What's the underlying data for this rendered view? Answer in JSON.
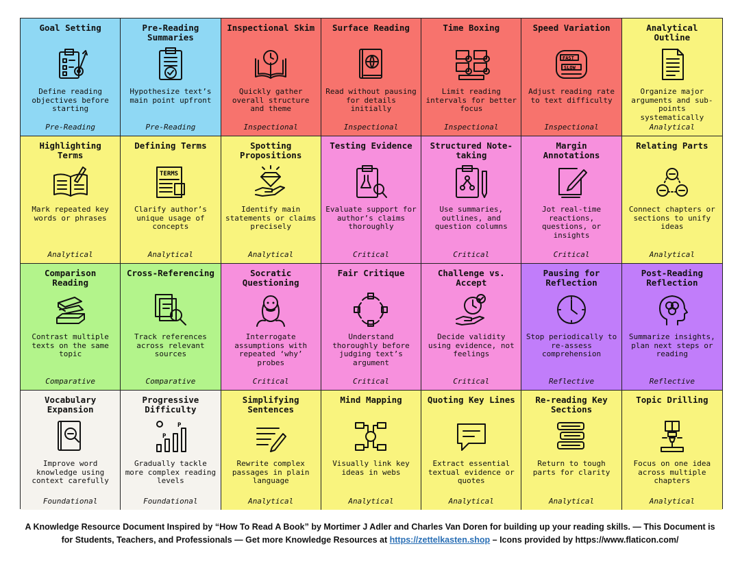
{
  "colors": {
    "pre_reading": "#8fd8f4",
    "inspectional": "#f7736d",
    "analytical": "#f9f47e",
    "critical": "#f790dd",
    "comparative": "#b3f48b",
    "reflective": "#c17dfa",
    "foundational": "#f5f3ee"
  },
  "cards": [
    {
      "title": "Goal Setting",
      "desc": "Define reading objectives before starting",
      "cat": "Pre-Reading",
      "icon": "clipboard-target-icon",
      "color": "pre_reading"
    },
    {
      "title": "Pre-Reading Summaries",
      "desc": "Hypothesize text’s main point upfront",
      "cat": "Pre-Reading",
      "icon": "clipboard-check-icon",
      "color": "pre_reading"
    },
    {
      "title": "Inspectional Skim",
      "desc": "Quickly gather overall structure and theme",
      "cat": "Inspectional",
      "icon": "book-clock-icon",
      "color": "inspectional"
    },
    {
      "title": "Surface Reading",
      "desc": "Read without pausing for details initially",
      "cat": "Inspectional",
      "icon": "book-globe-icon",
      "color": "inspectional"
    },
    {
      "title": "Time Boxing",
      "desc": "Limit reading intervals for better focus",
      "cat": "Inspectional",
      "icon": "time-blocks-icon",
      "color": "inspectional"
    },
    {
      "title": "Speed Variation",
      "desc": "Adjust reading rate to text difficulty",
      "cat": "Inspectional",
      "icon": "fast-slow-icon",
      "color": "inspectional"
    },
    {
      "title": "Analytical Outline",
      "desc": "Organize major arguments and sub-points systematically",
      "cat": "Analytical",
      "icon": "document-outline-icon",
      "color": "analytical"
    },
    {
      "title": "Highlighting Terms",
      "desc": "Mark repeated key words or phrases",
      "cat": "Analytical",
      "icon": "open-book-pen-icon",
      "color": "analytical"
    },
    {
      "title": "Defining Terms",
      "desc": "Clarify author’s unique usage of concepts",
      "cat": "Analytical",
      "icon": "terms-document-icon",
      "color": "analytical"
    },
    {
      "title": "Spotting Propositions",
      "desc": "Identify main statements or claims precisely",
      "cat": "Analytical",
      "icon": "hand-diamond-icon",
      "color": "analytical"
    },
    {
      "title": "Testing Evidence",
      "desc": "Evaluate support for author’s claims thoroughly",
      "cat": "Critical",
      "icon": "clipboard-flask-magnifier-icon",
      "color": "critical"
    },
    {
      "title": "Structured Note-taking",
      "desc": "Use summaries, outlines, and question columns",
      "cat": "Critical",
      "icon": "clipboard-pencil-icon",
      "color": "critical"
    },
    {
      "title": "Margin Annotations",
      "desc": "Jot real-time reactions, questions, or insights",
      "cat": "Critical",
      "icon": "edit-square-icon",
      "color": "critical"
    },
    {
      "title": "Relating Parts",
      "desc": "Connect chapters or sections to unify ideas",
      "cat": "Analytical",
      "icon": "linked-circles-icon",
      "color": "analytical"
    },
    {
      "title": "Comparison Reading",
      "desc": "Contrast multiple texts on the same topic",
      "cat": "Comparative",
      "icon": "book-stack-icon",
      "color": "comparative"
    },
    {
      "title": "Cross-Referencing",
      "desc": "Track references across relevant sources",
      "cat": "Comparative",
      "icon": "documents-magnifier-icon",
      "color": "comparative"
    },
    {
      "title": "Socratic Questioning",
      "desc": "Interrogate assumptions with repeated ‘why’ probes",
      "cat": "Critical",
      "icon": "socrates-icon",
      "color": "critical"
    },
    {
      "title": "Fair Critique",
      "desc": "Understand thoroughly before judging text’s argument",
      "cat": "Critical",
      "icon": "thumbs-cycle-icon",
      "color": "critical"
    },
    {
      "title": "Challenge vs. Accept",
      "desc": "Decide validity using evidence, not feelings",
      "cat": "Critical",
      "icon": "hand-clock-check-icon",
      "color": "critical"
    },
    {
      "title": "Pausing for Reflection",
      "desc": "Stop periodically to re-assess comprehension",
      "cat": "Reflective",
      "icon": "clock-pause-icon",
      "color": "reflective"
    },
    {
      "title": "Post-Reading Reflection",
      "desc": "Summarize insights, plan next steps or reading",
      "cat": "Reflective",
      "icon": "head-brain-icon",
      "color": "reflective"
    },
    {
      "title": "Vocabulary Expansion",
      "desc": "Improve word knowledge using context carefully",
      "cat": "Foundational",
      "icon": "book-magnifier-icon",
      "color": "foundational"
    },
    {
      "title": "Progressive Difficulty",
      "desc": "Gradually tackle more complex reading levels",
      "cat": "Foundational",
      "icon": "rising-bars-icon",
      "color": "foundational"
    },
    {
      "title": "Simplifying Sentences",
      "desc": "Rewrite complex passages in plain language",
      "cat": "Analytical",
      "icon": "lines-pencil-icon",
      "color": "analytical"
    },
    {
      "title": "Mind Mapping",
      "desc": "Visually link key ideas in webs",
      "cat": "Analytical",
      "icon": "mind-map-icon",
      "color": "analytical"
    },
    {
      "title": "Quoting Key Lines",
      "desc": "Extract essential textual evidence or quotes",
      "cat": "Analytical",
      "icon": "speech-bubble-icon",
      "color": "analytical"
    },
    {
      "title": "Re-reading Key Sections",
      "desc": "Return to tough parts for clarity",
      "cat": "Analytical",
      "icon": "scroll-stack-icon",
      "color": "analytical"
    },
    {
      "title": "Topic Drilling",
      "desc": "Focus on one idea across multiple chapters",
      "cat": "Analytical",
      "icon": "book-drill-icon",
      "color": "analytical"
    }
  ],
  "footer": {
    "line1": "A Knowledge Resource Document Inspired by “How To Read A Book” by Mortimer J Adler and Charles Van Doren for building up your reading skills. — This Document is",
    "line2_prefix": "for Students, Teachers, and Professionals — Get more Knowledge Resources at ",
    "link": "https://zettelkasten.shop",
    "line2_suffix": " – Icons provided by https://www.flaticon.com/"
  }
}
